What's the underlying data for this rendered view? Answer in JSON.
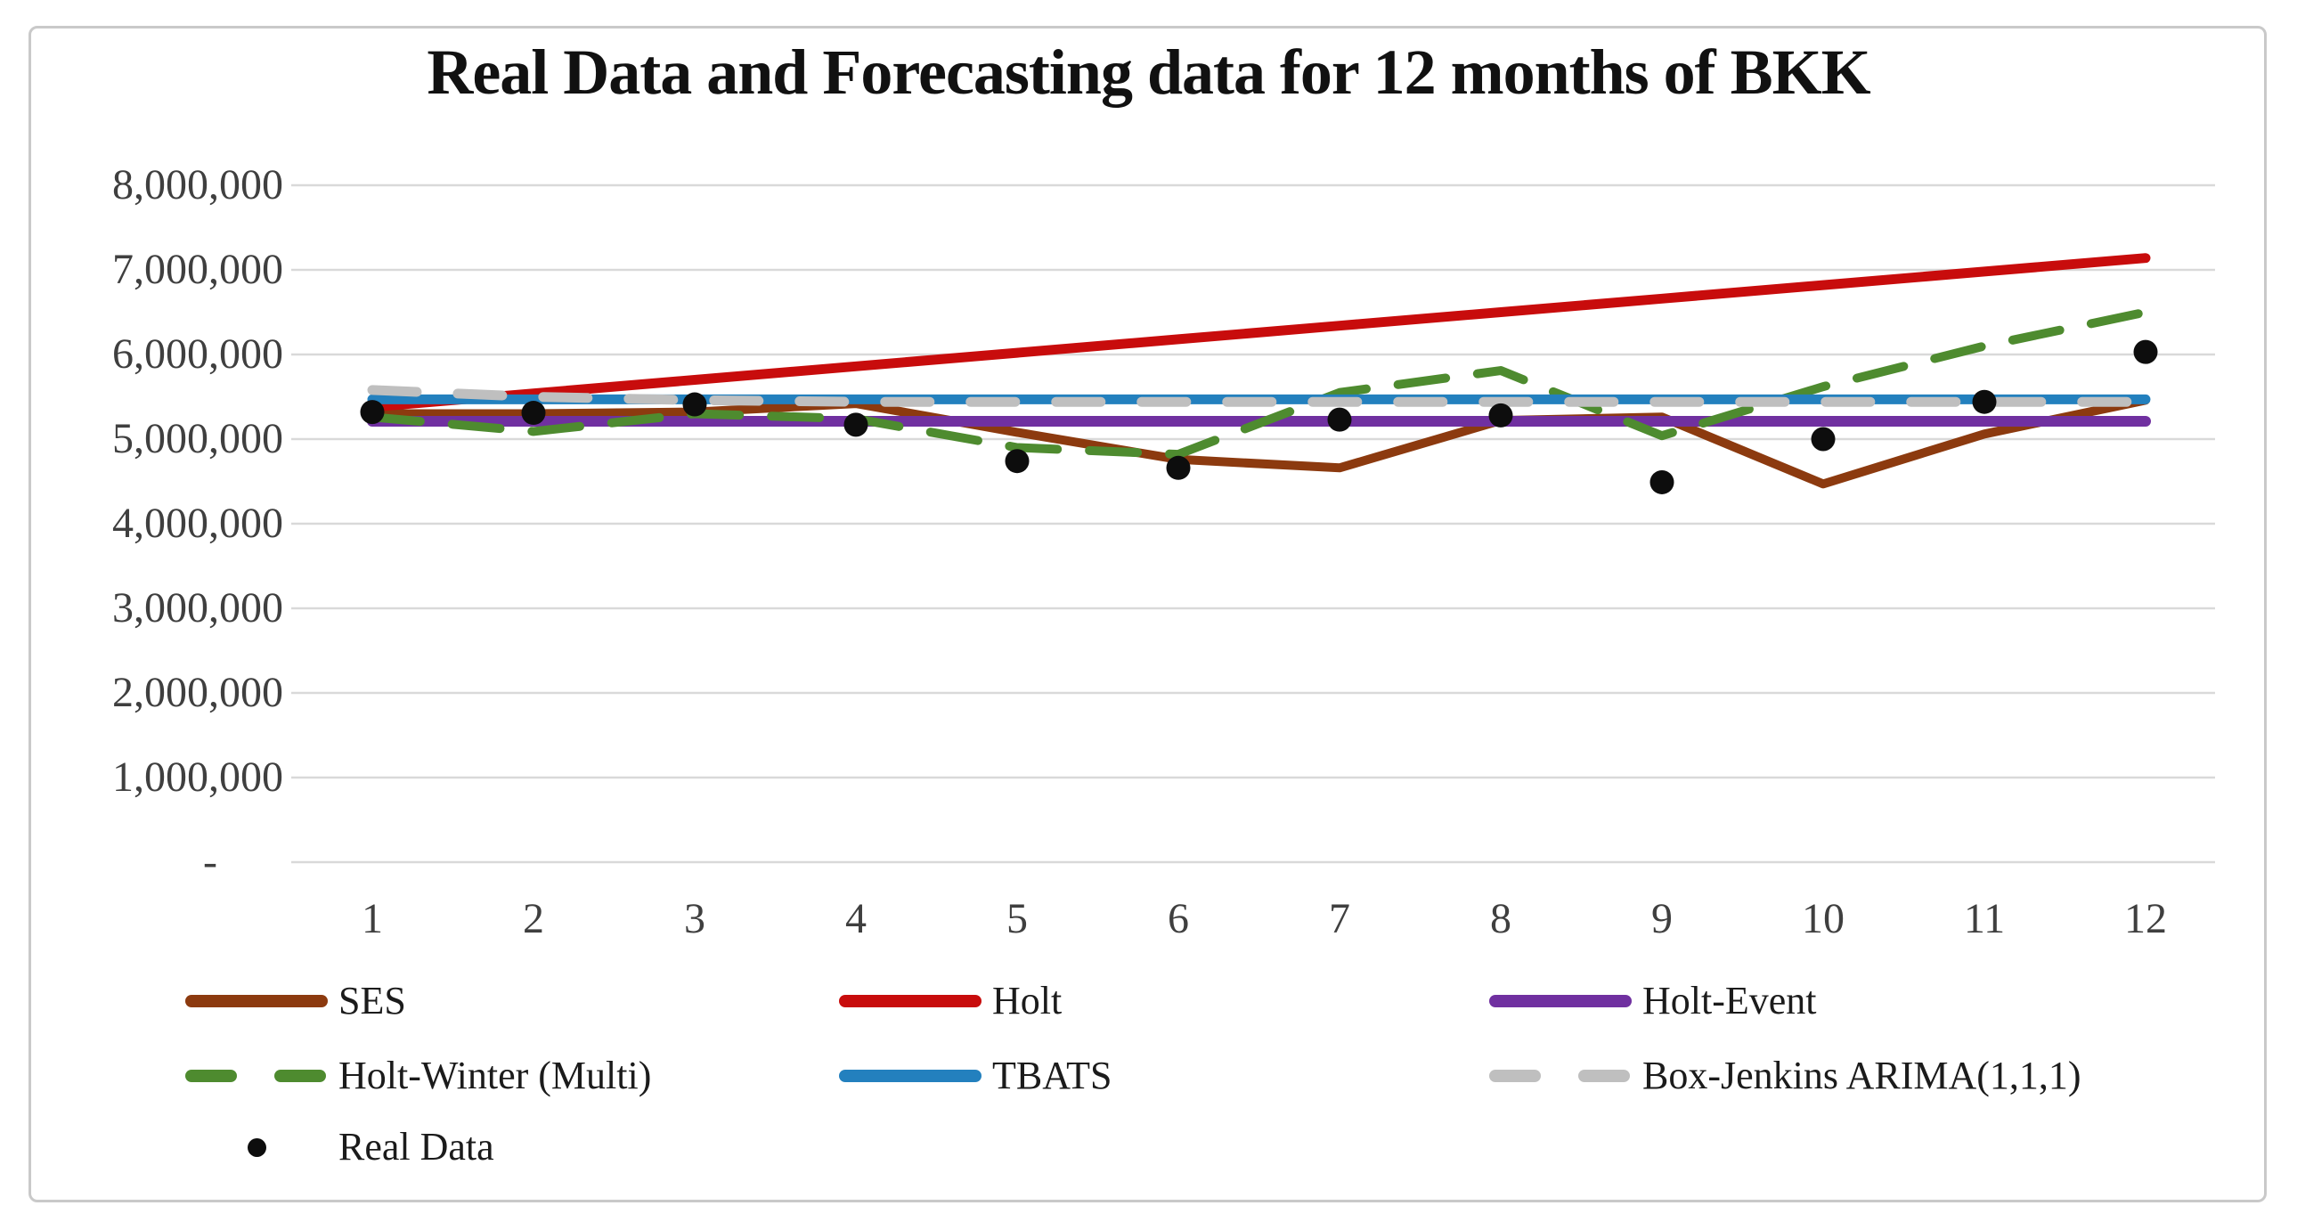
{
  "chart_data": {
    "type": "line",
    "title": "Real Data and Forecasting data for 12 months of BKK",
    "xlabel": "",
    "ylabel": "",
    "categories": [
      "1",
      "2",
      "3",
      "4",
      "5",
      "6",
      "7",
      "8",
      "9",
      "10",
      "11",
      "12"
    ],
    "y_axis": {
      "tick_labels": [
        "8,000,000",
        "7,000,000",
        "6,000,000",
        "5,000,000",
        "4,000,000",
        "3,000,000",
        "2,000,000",
        "1,000,000",
        "-"
      ],
      "tick_values_millions": [
        8,
        7,
        6,
        5,
        4,
        3,
        2,
        1,
        0
      ],
      "range_millions": [
        0,
        8
      ],
      "grid": true
    },
    "legend_position": "bottom",
    "series": [
      {
        "name": "SES",
        "color": "#8C3A0F",
        "style": "solid",
        "values_millions": [
          5.3,
          5.3,
          5.32,
          5.42,
          5.08,
          4.76,
          4.66,
          5.22,
          5.26,
          4.47,
          5.06,
          5.46
        ]
      },
      {
        "name": "Holt",
        "color": "#C80C0C",
        "style": "solid",
        "values_millions": [
          5.38,
          5.54,
          5.7,
          5.86,
          6.02,
          6.18,
          6.34,
          6.5,
          6.66,
          6.82,
          6.98,
          7.14
        ]
      },
      {
        "name": "Holt-Event",
        "color": "#7030A0",
        "style": "solid",
        "values_millions": [
          5.21,
          5.21,
          5.21,
          5.21,
          5.21,
          5.21,
          5.21,
          5.21,
          5.21,
          5.21,
          5.21,
          5.21
        ]
      },
      {
        "name": "Holt-Winter (Multi)",
        "color": "#4E8B2F",
        "style": "dashed",
        "values_millions": [
          5.26,
          5.09,
          5.3,
          5.24,
          4.9,
          4.82,
          5.55,
          5.81,
          5.04,
          5.62,
          6.1,
          6.5
        ]
      },
      {
        "name": "TBATS",
        "color": "#2380BE",
        "style": "solid",
        "values_millions": [
          5.47,
          5.47,
          5.47,
          5.47,
          5.47,
          5.47,
          5.47,
          5.47,
          5.47,
          5.47,
          5.47,
          5.47
        ]
      },
      {
        "name": "Box-Jenkins ARIMA(1,1,1)",
        "color": "#BFBFBF",
        "style": "dashed",
        "values_millions": [
          5.58,
          5.5,
          5.46,
          5.44,
          5.44,
          5.44,
          5.44,
          5.44,
          5.44,
          5.44,
          5.44,
          5.44
        ]
      }
    ],
    "real_data": {
      "name": "Real Data",
      "color": "#0D0D0D",
      "style": "points",
      "values_millions": [
        5.32,
        5.31,
        5.41,
        5.17,
        4.74,
        4.66,
        5.23,
        5.28,
        4.49,
        5.0,
        5.44,
        6.03
      ]
    }
  }
}
